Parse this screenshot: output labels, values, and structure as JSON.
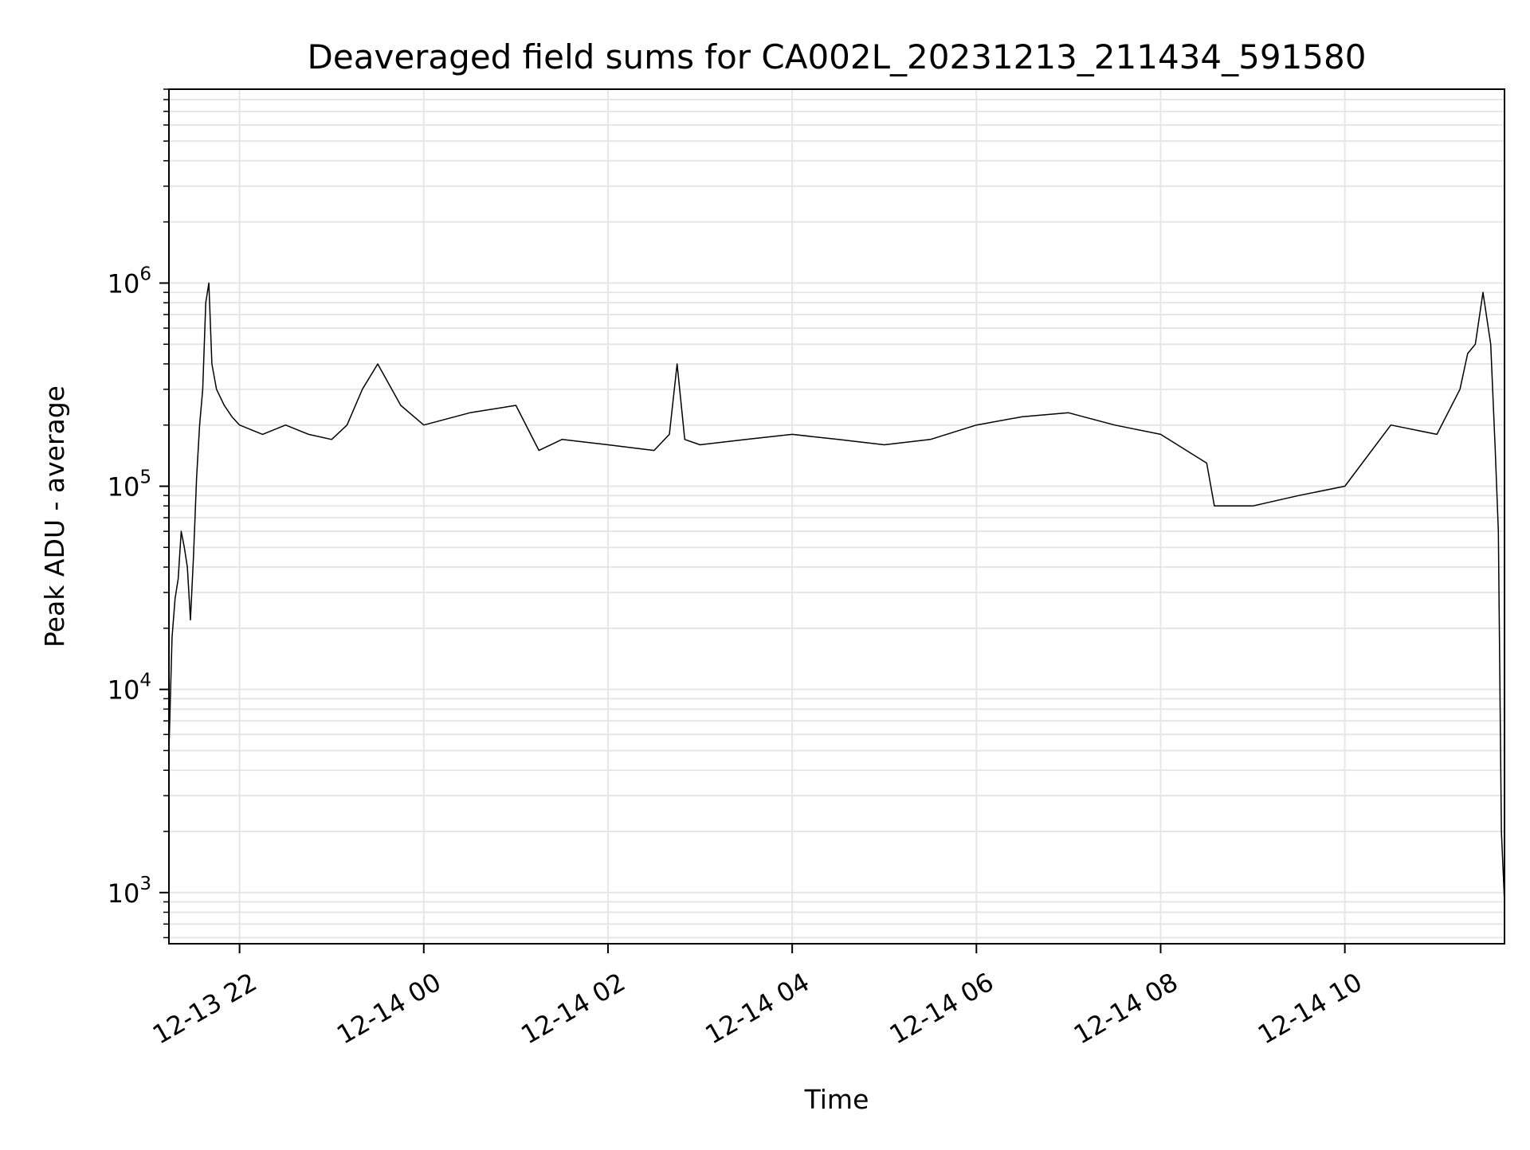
{
  "chart_data": {
    "type": "line",
    "title": "Deaveraged field sums for CA002L_20231213_211434_591580",
    "xlabel": "Time",
    "ylabel": "Peak ADU - average",
    "x_range": [
      "2023-12-13 21:14",
      "2023-12-14 11:44"
    ],
    "y_range": [
      560,
      9000000
    ],
    "y_scale": "log",
    "grid": true,
    "grid_minor": true,
    "legend": "none",
    "line_color": "#000000",
    "grid_color": "#e6e6e6",
    "x_ticks": [
      {
        "t": "2023-12-13 22:00",
        "label": "12-13 22"
      },
      {
        "t": "2023-12-14 00:00",
        "label": "12-14 00"
      },
      {
        "t": "2023-12-14 02:00",
        "label": "12-14 02"
      },
      {
        "t": "2023-12-14 04:00",
        "label": "12-14 04"
      },
      {
        "t": "2023-12-14 06:00",
        "label": "12-14 06"
      },
      {
        "t": "2023-12-14 08:00",
        "label": "12-14 08"
      },
      {
        "t": "2023-12-14 10:00",
        "label": "12-14 10"
      }
    ],
    "y_ticks": [
      {
        "value": 1000,
        "base": "10",
        "exp": "3"
      },
      {
        "value": 10000,
        "base": "10",
        "exp": "4"
      },
      {
        "value": 100000,
        "base": "10",
        "exp": "5"
      },
      {
        "value": 1000000,
        "base": "10",
        "exp": "6"
      }
    ],
    "series": [
      {
        "x": [
          "2023-12-13 21:14",
          "2023-12-13 21:16",
          "2023-12-13 21:18",
          "2023-12-13 21:20",
          "2023-12-13 21:22",
          "2023-12-13 21:24",
          "2023-12-13 21:26",
          "2023-12-13 21:28",
          "2023-12-13 21:30",
          "2023-12-13 21:32",
          "2023-12-13 21:34",
          "2023-12-13 21:36",
          "2023-12-13 21:38",
          "2023-12-13 21:40",
          "2023-12-13 21:42",
          "2023-12-13 21:45",
          "2023-12-13 21:50",
          "2023-12-13 21:55",
          "2023-12-13 22:00",
          "2023-12-13 22:15",
          "2023-12-13 22:30",
          "2023-12-13 22:45",
          "2023-12-13 23:00",
          "2023-12-13 23:10",
          "2023-12-13 23:20",
          "2023-12-13 23:30",
          "2023-12-13 23:45",
          "2023-12-14 00:00",
          "2023-12-14 00:30",
          "2023-12-14 01:00",
          "2023-12-14 01:15",
          "2023-12-14 01:30",
          "2023-12-14 02:00",
          "2023-12-14 02:30",
          "2023-12-14 02:40",
          "2023-12-14 02:45",
          "2023-12-14 02:50",
          "2023-12-14 03:00",
          "2023-12-14 03:30",
          "2023-12-14 04:00",
          "2023-12-14 04:30",
          "2023-12-14 05:00",
          "2023-12-14 05:30",
          "2023-12-14 06:00",
          "2023-12-14 06:30",
          "2023-12-14 07:00",
          "2023-12-14 07:30",
          "2023-12-14 08:00",
          "2023-12-14 08:30",
          "2023-12-14 08:35",
          "2023-12-14 09:00",
          "2023-12-14 09:30",
          "2023-12-14 10:00",
          "2023-12-14 10:30",
          "2023-12-14 11:00",
          "2023-12-14 11:15",
          "2023-12-14 11:20",
          "2023-12-14 11:25",
          "2023-12-14 11:30",
          "2023-12-14 11:35",
          "2023-12-14 11:38",
          "2023-12-14 11:40",
          "2023-12-14 11:42",
          "2023-12-14 11:44"
        ],
        "y": [
          5000,
          18000,
          28000,
          35000,
          60000,
          50000,
          40000,
          22000,
          45000,
          110000,
          200000,
          300000,
          800000,
          1000000,
          400000,
          300000,
          250000,
          220000,
          200000,
          180000,
          200000,
          180000,
          170000,
          200000,
          300000,
          400000,
          250000,
          200000,
          230000,
          250000,
          150000,
          170000,
          160000,
          150000,
          180000,
          400000,
          170000,
          160000,
          170000,
          180000,
          170000,
          160000,
          170000,
          200000,
          220000,
          230000,
          200000,
          180000,
          130000,
          80000,
          80000,
          90000,
          100000,
          200000,
          180000,
          300000,
          450000,
          500000,
          900000,
          500000,
          150000,
          60000,
          2000,
          900
        ]
      }
    ]
  }
}
